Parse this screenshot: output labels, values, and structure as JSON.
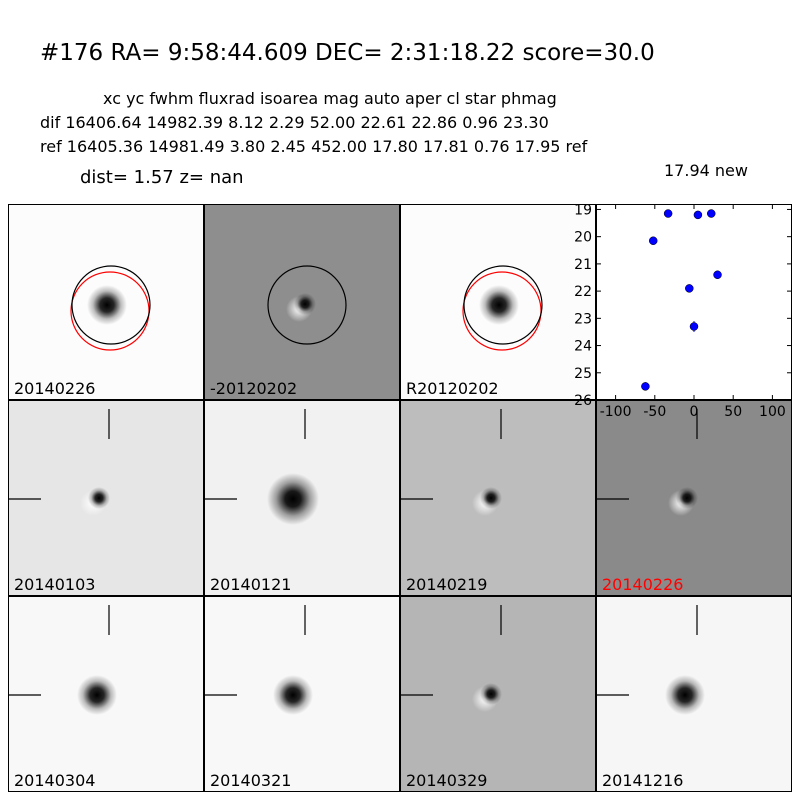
{
  "title": "#176   RA= 9:58:44.609 DEC= 2:31:18.22       score=30.0",
  "table": {
    "columns": "xc            yc          fwhm  fluxrad   isoarea mag auto    aper  cl star  phmag",
    "dif": "dif   16406.64  14982.39     8.12     2.29      52.00       22.61     22.86    0.96      23.30",
    "ref": "ref   16405.36  14981.49     3.80     2.45     452.00      17.80     17.81    0.76     17.95 ref",
    "new_line": "17.94 new"
  },
  "dist_line": "dist=  1.57       z=   nan",
  "top_panels": [
    {
      "label": "20140226",
      "bg": "#fcfcfc",
      "type": "blob",
      "circles": true,
      "red": true
    },
    {
      "label": "-20120202",
      "bg": "#8e8e8e",
      "type": "dipole",
      "circles": true,
      "red": false
    },
    {
      "label": "R20120202",
      "bg": "#fcfcfc",
      "type": "blob",
      "circles": true,
      "red": true
    }
  ],
  "grid_panels": [
    {
      "label": "20140103",
      "bg": "#e6e6e6",
      "type": "dipole",
      "label_color": "#000000"
    },
    {
      "label": "20140121",
      "bg": "#f1f1f1",
      "type": "bigblob",
      "label_color": "#000000"
    },
    {
      "label": "20140219",
      "bg": "#bdbdbd",
      "type": "dipole",
      "label_color": "#000000"
    },
    {
      "label": "20140226",
      "bg": "#8a8a8a",
      "type": "dipole",
      "label_color": "#ff0000"
    },
    {
      "label": "20140304",
      "bg": "#f8f8f8",
      "type": "blob",
      "label_color": "#000000"
    },
    {
      "label": "20140321",
      "bg": "#f8f8f8",
      "type": "blob",
      "label_color": "#000000"
    },
    {
      "label": "20140329",
      "bg": "#b5b5b5",
      "type": "dipole",
      "label_color": "#000000"
    },
    {
      "label": "20141216",
      "bg": "#f6f6f6",
      "type": "blob",
      "label_color": "#000000"
    }
  ],
  "chart_data": {
    "type": "scatter",
    "title": "",
    "xlabel": "",
    "ylabel": "",
    "xlim": [
      -125,
      125
    ],
    "ylim": [
      26,
      18.8
    ],
    "y_inverted": true,
    "x_ticks": [
      -100,
      -50,
      0,
      50,
      100
    ],
    "y_ticks": [
      19,
      20,
      21,
      22,
      23,
      24,
      25,
      26
    ],
    "marker_color": "#0000ff",
    "points": [
      {
        "x": -52,
        "y": 20.15,
        "err": 0.05
      },
      {
        "x": -33,
        "y": 19.15,
        "err": 0.05
      },
      {
        "x": 5,
        "y": 19.2,
        "err": 0.05
      },
      {
        "x": 22,
        "y": 19.15,
        "err": 0.05
      },
      {
        "x": 30,
        "y": 21.4,
        "err": 0.06
      },
      {
        "x": -6,
        "y": 21.9,
        "err": 0.1
      },
      {
        "x": 0,
        "y": 23.3,
        "err": 0.2
      },
      {
        "x": -62,
        "y": 25.5,
        "err": 0.15
      }
    ]
  }
}
